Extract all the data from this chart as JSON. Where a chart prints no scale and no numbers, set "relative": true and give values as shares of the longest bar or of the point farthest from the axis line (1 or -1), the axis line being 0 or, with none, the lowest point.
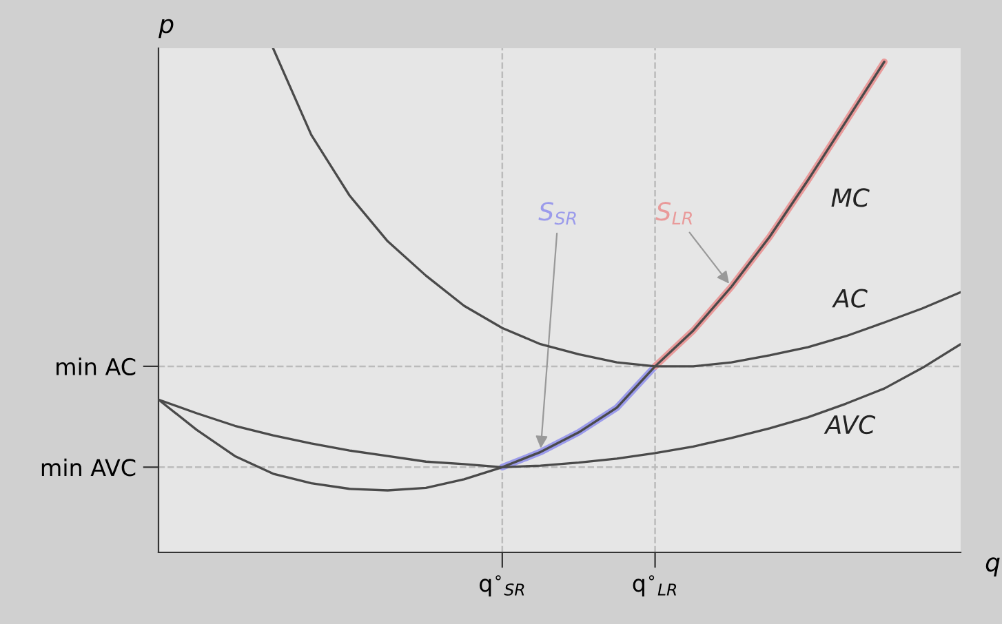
{
  "chart_data": {
    "type": "line",
    "relative": true,
    "xlabel": "q",
    "ylabel": "p",
    "grid": false,
    "legend": false,
    "marker": "none",
    "line_style": "solid",
    "categories": [
      null,
      null,
      null,
      null,
      null,
      null,
      null,
      null,
      null,
      "q$^{∘}$$_{SR}$",
      null,
      null,
      null,
      "q$^{∘}$$_{LR}$",
      null,
      null,
      null,
      null,
      null,
      null,
      null,
      null
    ],
    "series": [
      {
        "name": "AC",
        "color": "#4a4a4a",
        "values": [
          null,
          null,
          null,
          1.0,
          0.828,
          0.708,
          0.617,
          0.549,
          0.489,
          0.445,
          0.413,
          0.393,
          0.377,
          0.369,
          0.369,
          0.377,
          0.391,
          0.407,
          0.429,
          0.456,
          0.484,
          0.516
        ]
      },
      {
        "name": "AVC",
        "color": "#4a4a4a",
        "values": [
          0.303,
          0.276,
          0.251,
          0.232,
          0.216,
          0.202,
          0.191,
          0.18,
          0.175,
          0.169,
          0.172,
          0.178,
          0.186,
          0.197,
          0.21,
          0.227,
          0.246,
          0.268,
          0.295,
          0.325,
          0.366,
          0.413
        ]
      },
      {
        "name": "MC",
        "color": "#4a4a4a",
        "values": [
          0.303,
          0.243,
          0.191,
          0.156,
          0.137,
          0.126,
          0.123,
          0.128,
          0.145,
          0.169,
          0.199,
          0.238,
          0.287,
          0.369,
          0.44,
          0.527,
          0.626,
          0.738,
          0.855,
          0.973,
          null,
          null
        ]
      },
      {
        "name": "S$_{SR}$",
        "color": "#9b9beb",
        "values": [
          null,
          null,
          null,
          null,
          null,
          null,
          null,
          null,
          null,
          0.169,
          0.199,
          0.238,
          0.287,
          0.369,
          null,
          null,
          null,
          null,
          null,
          null,
          null,
          null
        ]
      },
      {
        "name": "S$_{LR}$",
        "color": "#e99a9a",
        "values": [
          null,
          null,
          null,
          null,
          null,
          null,
          null,
          null,
          null,
          null,
          null,
          null,
          null,
          0.369,
          0.44,
          0.527,
          0.626,
          0.738,
          0.855,
          0.973,
          null,
          null
        ]
      }
    ],
    "ref_lines": [
      {
        "axis": "y",
        "value": 0.369,
        "label": "min AC",
        "color": "#bbbbbb",
        "line_style": "dashed"
      },
      {
        "axis": "y",
        "value": 0.169,
        "label": "min AVC",
        "color": "#bbbbbb",
        "line_style": "dashed"
      },
      {
        "axis": "x",
        "value": "q$^{∘}$$_{SR}$",
        "color": "#bbbbbb",
        "line_style": "dashed"
      },
      {
        "axis": "x",
        "value": "q$^{∘}$$_{LR}$",
        "color": "#bbbbbb",
        "line_style": "dashed"
      }
    ]
  }
}
